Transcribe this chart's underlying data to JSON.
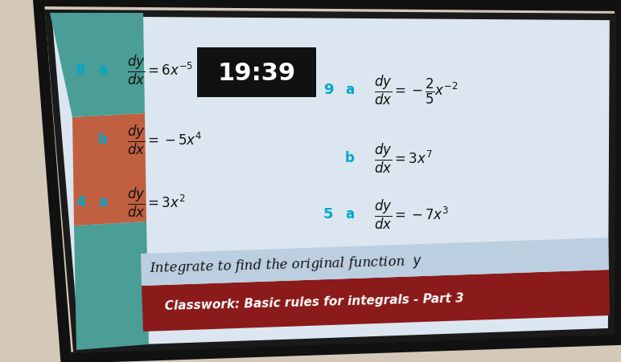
{
  "wall_color": "#d4c8b8",
  "tv_border_color": "#1a1a1a",
  "screen_bg": "#dce6f0",
  "header_bg": "#8b1a1a",
  "header_text": "Classwork: Basic rules for integrals - Part 3",
  "header_text_color": "#ffffff",
  "subtitle_bg": "#c8d8e8",
  "subtitle_text": "Integrate to find the original function",
  "subtitle_color": "#111111",
  "cyan_color": "#00a8cc",
  "black_color": "#111111",
  "timer_bg": "#111111",
  "timer_text": "19:39",
  "timer_color": "#ffffff",
  "deco_teal": "#4a9e96",
  "deco_coral": "#c06040",
  "deco_green": "#4a9e6a",
  "left_col": [
    {
      "num": "4",
      "letter": "a",
      "expr": "$\\dfrac{dy}{dx} = 3x^2$"
    },
    {
      "num": "",
      "letter": "b",
      "expr": "$\\dfrac{dy}{dx} = -5x^4$"
    },
    {
      "num": "8",
      "letter": "a",
      "expr": "$\\dfrac{dy}{dx} = 6x^{-5}$"
    }
  ],
  "right_col": [
    {
      "num": "5",
      "letter": "a",
      "expr": "$\\dfrac{dy}{dx} = -7x^3$"
    },
    {
      "num": "",
      "letter": "b",
      "expr": "$\\dfrac{dy}{dx} = 3x^7$"
    },
    {
      "num": "9",
      "letter": "a",
      "expr": "$\\dfrac{dy}{dx} = -\\dfrac{2}{5}x^{-2}$"
    }
  ]
}
